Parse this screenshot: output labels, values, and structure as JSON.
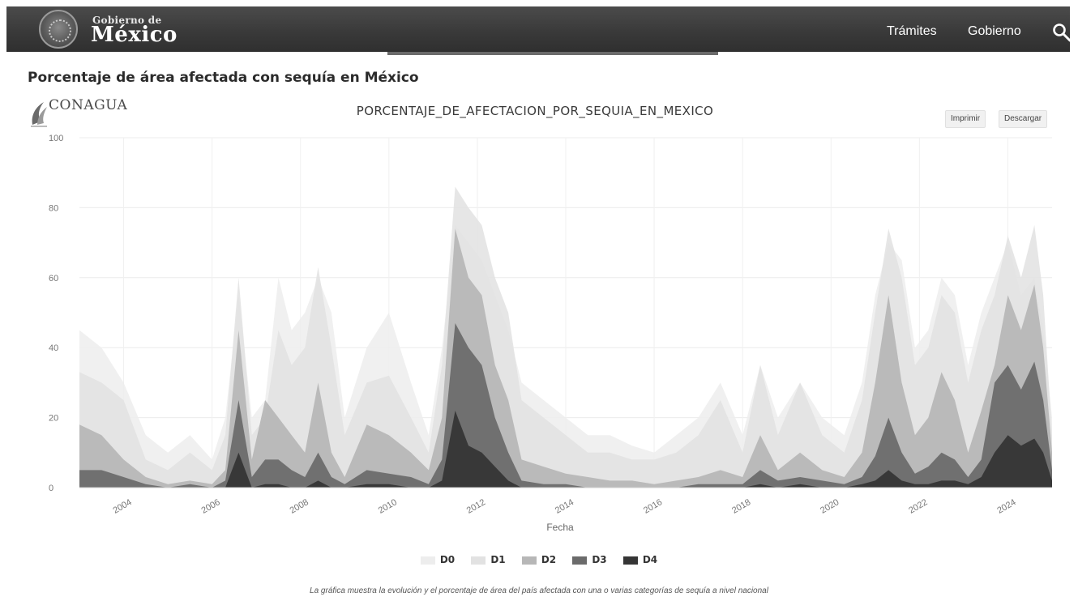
{
  "header": {
    "brand_small": "Gobierno de",
    "brand_big": "México",
    "nav": [
      "Trámites",
      "Gobierno"
    ]
  },
  "page_title": "Porcentaje de área afectada con sequía en México",
  "logo_text": "CONAGUA",
  "buttons": {
    "print": "Imprimir",
    "download": "Descargar"
  },
  "caption": "La gráfica muestra la evolución y el porcentaje de área del país afectada con una o varias categorías de sequía a nivel nacional",
  "colors": {
    "D0": "#ededed",
    "D1": "#e2e2e2",
    "D2": "#b7b7b7",
    "D3": "#6b6b6b",
    "D4": "#353535"
  },
  "chart_data": {
    "type": "area",
    "title": "PORCENTAJE_DE_AFECTACION_POR_SEQUIA_EN_MEXICO",
    "xlabel": "Fecha",
    "ylabel": "",
    "xlim": [
      2003,
      2025
    ],
    "ylim": [
      0,
      100
    ],
    "xticks": [
      2004,
      2006,
      2008,
      2010,
      2012,
      2014,
      2016,
      2018,
      2020,
      2022,
      2024
    ],
    "yticks": [
      0,
      20,
      40,
      60,
      80,
      100
    ],
    "grid": true,
    "legend_position": "bottom",
    "x": [
      2003.0,
      2003.5,
      2004.0,
      2004.5,
      2005.0,
      2005.5,
      2006.0,
      2006.3,
      2006.6,
      2006.9,
      2007.2,
      2007.5,
      2007.8,
      2008.1,
      2008.4,
      2008.7,
      2009.0,
      2009.5,
      2010.0,
      2010.5,
      2010.9,
      2011.2,
      2011.5,
      2011.8,
      2012.1,
      2012.4,
      2012.7,
      2013.0,
      2013.5,
      2014.0,
      2014.5,
      2015.0,
      2015.5,
      2016.0,
      2016.5,
      2017.0,
      2017.5,
      2018.0,
      2018.4,
      2018.8,
      2019.3,
      2019.8,
      2020.3,
      2020.7,
      2021.0,
      2021.3,
      2021.6,
      2021.9,
      2022.2,
      2022.5,
      2022.8,
      2023.1,
      2023.4,
      2023.7,
      2024.0,
      2024.3,
      2024.6,
      2024.8,
      2025.0
    ],
    "series": [
      {
        "name": "D0",
        "values": [
          45,
          40,
          30,
          15,
          10,
          15,
          8,
          20,
          55,
          20,
          25,
          60,
          45,
          50,
          60,
          50,
          20,
          40,
          50,
          30,
          15,
          40,
          75,
          70,
          65,
          55,
          45,
          30,
          25,
          20,
          15,
          15,
          12,
          10,
          15,
          20,
          30,
          15,
          35,
          20,
          30,
          20,
          15,
          30,
          55,
          70,
          65,
          40,
          45,
          60,
          55,
          35,
          50,
          60,
          70,
          55,
          60,
          45,
          20
        ]
      },
      {
        "name": "D1",
        "values": [
          33,
          30,
          25,
          8,
          5,
          10,
          5,
          15,
          60,
          15,
          20,
          45,
          35,
          40,
          63,
          40,
          15,
          30,
          32,
          20,
          10,
          35,
          86,
          80,
          75,
          60,
          50,
          25,
          20,
          15,
          10,
          10,
          8,
          8,
          10,
          15,
          25,
          10,
          35,
          15,
          30,
          15,
          10,
          25,
          50,
          74,
          60,
          35,
          40,
          55,
          50,
          30,
          45,
          55,
          72,
          60,
          75,
          55,
          15
        ]
      },
      {
        "name": "D2",
        "values": [
          18,
          15,
          8,
          3,
          1,
          2,
          1,
          5,
          45,
          8,
          25,
          20,
          15,
          10,
          30,
          10,
          3,
          18,
          15,
          10,
          5,
          20,
          74,
          60,
          55,
          35,
          25,
          8,
          6,
          4,
          3,
          2,
          2,
          1,
          2,
          3,
          5,
          3,
          15,
          5,
          10,
          5,
          3,
          10,
          30,
          55,
          30,
          15,
          20,
          33,
          25,
          10,
          22,
          35,
          55,
          45,
          58,
          40,
          10
        ]
      },
      {
        "name": "D3",
        "values": [
          5,
          5,
          3,
          1,
          0,
          1,
          0,
          2,
          25,
          3,
          8,
          8,
          5,
          3,
          10,
          3,
          1,
          5,
          4,
          3,
          1,
          8,
          47,
          40,
          35,
          20,
          10,
          2,
          1,
          1,
          0,
          0,
          0,
          0,
          0,
          1,
          1,
          1,
          5,
          2,
          3,
          2,
          1,
          3,
          9,
          20,
          10,
          4,
          6,
          10,
          8,
          3,
          8,
          30,
          35,
          28,
          36,
          25,
          5
        ]
      },
      {
        "name": "D4",
        "values": [
          0,
          0,
          0,
          0,
          0,
          0,
          0,
          0,
          10,
          0,
          1,
          1,
          0,
          0,
          2,
          0,
          0,
          1,
          1,
          0,
          0,
          2,
          22,
          12,
          10,
          6,
          2,
          0,
          0,
          0,
          0,
          0,
          0,
          0,
          0,
          0,
          0,
          0,
          1,
          0,
          1,
          0,
          0,
          1,
          2,
          5,
          2,
          1,
          1,
          2,
          2,
          1,
          3,
          10,
          15,
          12,
          14,
          10,
          2
        ]
      }
    ]
  }
}
